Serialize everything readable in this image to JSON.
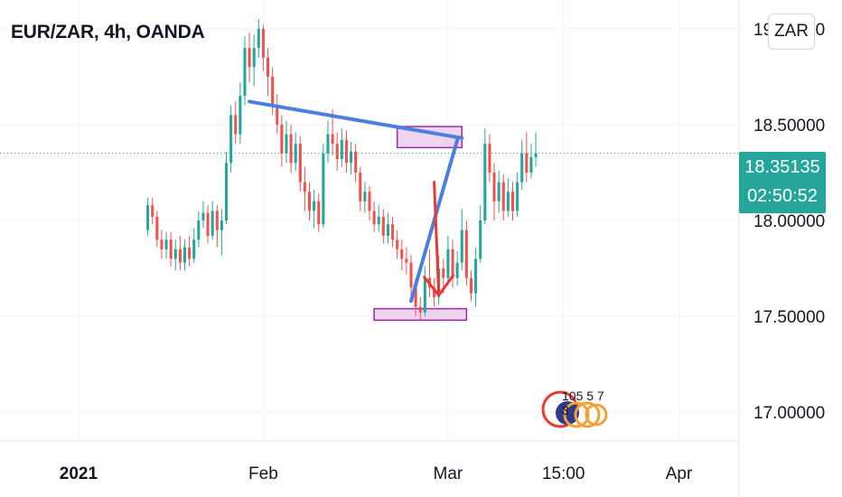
{
  "header": {
    "title": "EUR/ZAR, 4h, OANDA",
    "currency_badge": "ZAR"
  },
  "price_tag": {
    "price": "18.35135",
    "countdown": "02:50:52",
    "color": "#26a69a"
  },
  "watermark": {
    "text": "105 5 7 3"
  },
  "chart_data": {
    "type": "candlestick",
    "symbol": "EUR/ZAR",
    "interval": "4h",
    "source": "OANDA",
    "y_axis": {
      "ticks": [
        "19.00000",
        "18.50000",
        "18.00000",
        "17.50000",
        "17.00000"
      ],
      "tick_values": [
        19.0,
        18.5,
        18.0,
        17.5,
        17.0
      ],
      "range": [
        16.85,
        19.15
      ]
    },
    "x_axis": {
      "ticks": [
        "2021",
        "Feb",
        "Mar",
        "15:00",
        "Apr"
      ],
      "tick_index": [
        -15,
        25,
        65,
        90,
        115
      ],
      "range_index": [
        -32,
        128
      ]
    },
    "current_price": 18.35135,
    "grid": true,
    "colors": {
      "up": "#26a69a",
      "down": "#ef5350",
      "trendline": "#4a7fe0",
      "arrow": "#e53935",
      "zone_fill": "#e8c6ea",
      "zone_border": "#9c27b0",
      "price_line": "#26a69a"
    },
    "candles": [
      [
        17.95,
        18.08,
        18.12,
        17.92
      ],
      [
        18.08,
        18.02,
        18.12,
        17.98
      ],
      [
        18.02,
        17.9,
        18.05,
        17.86
      ],
      [
        17.9,
        17.85,
        17.95,
        17.8
      ],
      [
        17.85,
        17.9,
        17.94,
        17.8
      ],
      [
        17.9,
        17.8,
        17.94,
        17.76
      ],
      [
        17.8,
        17.85,
        17.9,
        17.74
      ],
      [
        17.85,
        17.78,
        17.92,
        17.74
      ],
      [
        17.78,
        17.86,
        17.9,
        17.74
      ],
      [
        17.86,
        17.8,
        17.92,
        17.76
      ],
      [
        17.8,
        17.9,
        17.96,
        17.78
      ],
      [
        17.9,
        18.0,
        18.05,
        17.86
      ],
      [
        18.0,
        18.04,
        18.1,
        17.96
      ],
      [
        18.04,
        17.92,
        18.08,
        17.88
      ],
      [
        17.92,
        18.05,
        18.1,
        17.9
      ],
      [
        18.05,
        17.95,
        18.08,
        17.86
      ],
      [
        17.95,
        18.0,
        18.06,
        17.82
      ],
      [
        18.0,
        18.3,
        18.36,
        17.98
      ],
      [
        18.3,
        18.55,
        18.6,
        18.25
      ],
      [
        18.55,
        18.45,
        18.62,
        18.4
      ],
      [
        18.45,
        18.65,
        18.72,
        18.4
      ],
      [
        18.65,
        18.9,
        18.96,
        18.6
      ],
      [
        18.9,
        18.8,
        18.98,
        18.72
      ],
      [
        18.8,
        18.9,
        18.97,
        18.7
      ],
      [
        18.9,
        19.0,
        19.05,
        18.85
      ],
      [
        19.0,
        18.85,
        19.02,
        18.78
      ],
      [
        18.85,
        18.75,
        18.9,
        18.65
      ],
      [
        18.75,
        18.6,
        18.8,
        18.55
      ],
      [
        18.6,
        18.5,
        18.66,
        18.45
      ],
      [
        18.5,
        18.35,
        18.55,
        18.28
      ],
      [
        18.35,
        18.45,
        18.52,
        18.3
      ],
      [
        18.45,
        18.3,
        18.5,
        18.25
      ],
      [
        18.3,
        18.4,
        18.46,
        18.26
      ],
      [
        18.4,
        18.2,
        18.44,
        18.15
      ],
      [
        18.2,
        18.15,
        18.28,
        18.05
      ],
      [
        18.15,
        18.05,
        18.2,
        18.0
      ],
      [
        18.05,
        18.1,
        18.16,
        17.96
      ],
      [
        18.1,
        17.98,
        18.14,
        17.94
      ],
      [
        17.98,
        18.35,
        18.4,
        17.96
      ],
      [
        18.35,
        18.45,
        18.52,
        18.3
      ],
      [
        18.45,
        18.4,
        18.58,
        18.34
      ],
      [
        18.4,
        18.32,
        18.46,
        18.26
      ],
      [
        18.32,
        18.42,
        18.48,
        18.28
      ],
      [
        18.42,
        18.3,
        18.47,
        18.25
      ],
      [
        18.3,
        18.36,
        18.41,
        18.24
      ],
      [
        18.36,
        18.25,
        18.4,
        18.2
      ],
      [
        18.25,
        18.1,
        18.28,
        18.05
      ],
      [
        18.1,
        18.15,
        18.2,
        18.04
      ],
      [
        18.15,
        18.05,
        18.18,
        18.0
      ],
      [
        18.05,
        17.98,
        18.1,
        17.94
      ],
      [
        17.98,
        18.02,
        18.08,
        17.94
      ],
      [
        18.02,
        17.92,
        18.06,
        17.88
      ],
      [
        17.92,
        17.98,
        18.04,
        17.88
      ],
      [
        17.98,
        17.9,
        18.02,
        17.86
      ],
      [
        17.9,
        17.85,
        17.95,
        17.8
      ],
      [
        17.85,
        17.8,
        17.9,
        17.74
      ],
      [
        17.8,
        17.78,
        17.86,
        17.72
      ],
      [
        17.78,
        17.65,
        17.82,
        17.6
      ],
      [
        17.65,
        17.55,
        17.7,
        17.5
      ],
      [
        17.55,
        17.52,
        17.6,
        17.48
      ],
      [
        17.52,
        17.7,
        17.76,
        17.5
      ],
      [
        17.7,
        17.65,
        17.85,
        17.6
      ],
      [
        17.65,
        17.6,
        17.7,
        17.55
      ],
      [
        17.6,
        17.75,
        17.82,
        17.56
      ],
      [
        17.75,
        17.7,
        17.8,
        17.62
      ],
      [
        17.7,
        17.85,
        17.92,
        17.66
      ],
      [
        17.85,
        17.7,
        17.9,
        17.65
      ],
      [
        17.7,
        17.78,
        17.84,
        17.66
      ],
      [
        17.78,
        17.95,
        18.06,
        17.74
      ],
      [
        17.95,
        17.7,
        18.0,
        17.66
      ],
      [
        17.7,
        17.62,
        17.74,
        17.58
      ],
      [
        17.62,
        17.8,
        17.86,
        17.55
      ],
      [
        17.8,
        18.0,
        18.08,
        17.78
      ],
      [
        18.0,
        18.4,
        18.48,
        17.98
      ],
      [
        18.4,
        18.25,
        18.45,
        18.2
      ],
      [
        18.25,
        18.1,
        18.3,
        18.0
      ],
      [
        18.1,
        18.2,
        18.26,
        18.04
      ],
      [
        18.2,
        18.05,
        18.24,
        18.0
      ],
      [
        18.05,
        18.15,
        18.22,
        18.02
      ],
      [
        18.15,
        18.05,
        18.2,
        18.0
      ],
      [
        18.05,
        18.2,
        18.25,
        18.02
      ],
      [
        18.2,
        18.35,
        18.42,
        18.16
      ],
      [
        18.35,
        18.25,
        18.46,
        18.2
      ],
      [
        18.25,
        18.33,
        18.4,
        18.22
      ],
      [
        18.33,
        18.35,
        18.46,
        18.28
      ]
    ],
    "zones": [
      {
        "from_index": 54,
        "to_index": 68,
        "low": 18.38,
        "high": 18.49
      },
      {
        "from_index": 49,
        "to_index": 69,
        "low": 17.48,
        "high": 17.54
      }
    ],
    "trendlines": [
      {
        "from": [
          22,
          18.62
        ],
        "to": [
          68,
          18.43
        ]
      },
      {
        "from": [
          57,
          17.58
        ],
        "to": [
          67,
          18.42
        ]
      }
    ],
    "arrow": {
      "from": [
        62,
        18.2
      ],
      "to": [
        63,
        17.61
      ]
    }
  }
}
